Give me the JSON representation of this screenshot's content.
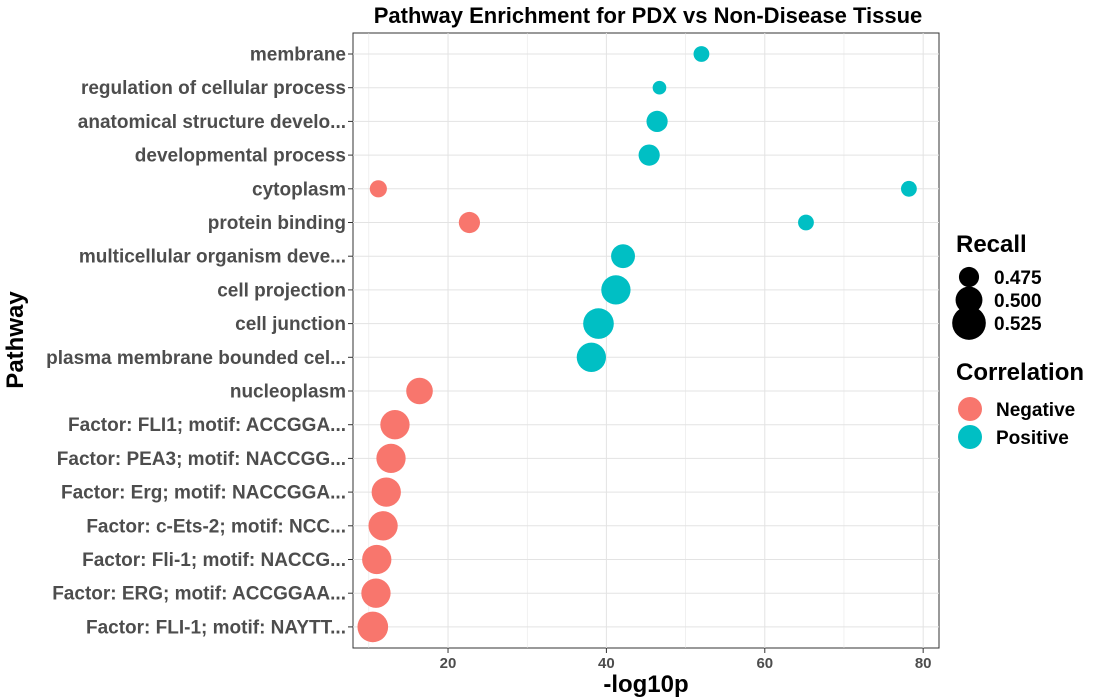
{
  "chart_data": {
    "type": "scatter",
    "title": "Pathway Enrichment for PDX vs Non-Disease Tissue",
    "xlabel": "-log10p",
    "ylabel": "Pathway",
    "xlim": [
      8,
      82
    ],
    "x_ticks": [
      20,
      40,
      60,
      80
    ],
    "grid": true,
    "legend_position": "right",
    "categories": [
      "membrane",
      "regulation of cellular process",
      "anatomical structure develo...",
      "developmental process",
      "cytoplasm",
      "protein binding",
      "multicellular organism deve...",
      "cell projection",
      "cell junction",
      "plasma membrane bounded cel...",
      "nucleoplasm",
      "Factor: FLI1; motif: ACCGGA...",
      "Factor: PEA3; motif: NACCGG...",
      "Factor: Erg; motif: NACCGGA...",
      "Factor: c-Ets-2; motif: NCC...",
      "Factor: Fli-1; motif: NACCG...",
      "Factor: ERG; motif: ACCGGAA...",
      "Factor: FLI-1; motif: NAYTT..."
    ],
    "points": [
      {
        "pathway": "membrane",
        "x": 52,
        "recall": 0.47,
        "correlation": "Positive"
      },
      {
        "pathway": "regulation of cellular process",
        "x": 46.7,
        "recall": 0.462,
        "correlation": "Positive"
      },
      {
        "pathway": "anatomical structure develo...",
        "x": 46.4,
        "recall": 0.49,
        "correlation": "Positive"
      },
      {
        "pathway": "developmental process",
        "x": 45.4,
        "recall": 0.49,
        "correlation": "Positive"
      },
      {
        "pathway": "cytoplasm",
        "x": 11.2,
        "recall": 0.475,
        "correlation": "Negative"
      },
      {
        "pathway": "cytoplasm",
        "x": 78.2,
        "recall": 0.47,
        "correlation": "Positive"
      },
      {
        "pathway": "protein binding",
        "x": 22.7,
        "recall": 0.49,
        "correlation": "Negative"
      },
      {
        "pathway": "protein binding",
        "x": 65.2,
        "recall": 0.47,
        "correlation": "Positive"
      },
      {
        "pathway": "multicellular organism deve...",
        "x": 42.1,
        "recall": 0.5,
        "correlation": "Positive"
      },
      {
        "pathway": "cell projection",
        "x": 41.2,
        "recall": 0.52,
        "correlation": "Positive"
      },
      {
        "pathway": "cell junction",
        "x": 39,
        "recall": 0.525,
        "correlation": "Positive"
      },
      {
        "pathway": "plasma membrane bounded cel...",
        "x": 38.1,
        "recall": 0.52,
        "correlation": "Positive"
      },
      {
        "pathway": "nucleoplasm",
        "x": 16.4,
        "recall": 0.51,
        "correlation": "Negative"
      },
      {
        "pathway": "Factor: FLI1; motif: ACCGGA...",
        "x": 13.3,
        "recall": 0.52,
        "correlation": "Negative"
      },
      {
        "pathway": "Factor: PEA3; motif: NACCGG...",
        "x": 12.8,
        "recall": 0.52,
        "correlation": "Negative"
      },
      {
        "pathway": "Factor: Erg; motif: NACCGGA...",
        "x": 12.2,
        "recall": 0.52,
        "correlation": "Negative"
      },
      {
        "pathway": "Factor: c-Ets-2; motif: NCC...",
        "x": 11.8,
        "recall": 0.52,
        "correlation": "Negative"
      },
      {
        "pathway": "Factor: Fli-1; motif: NACCG...",
        "x": 11,
        "recall": 0.52,
        "correlation": "Negative"
      },
      {
        "pathway": "Factor: ERG; motif: ACCGGAA...",
        "x": 10.9,
        "recall": 0.52,
        "correlation": "Negative"
      },
      {
        "pathway": "Factor: FLI-1; motif: NAYTT...",
        "x": 10.5,
        "recall": 0.525,
        "correlation": "Negative"
      }
    ],
    "legend_recall": {
      "title": "Recall",
      "items": [
        {
          "label": "0.475",
          "value": 0.475
        },
        {
          "label": "0.500",
          "value": 0.5
        },
        {
          "label": "0.525",
          "value": 0.525
        }
      ]
    },
    "legend_correlation": {
      "title": "Correlation",
      "items": [
        {
          "label": "Negative",
          "color": "#F8766D"
        },
        {
          "label": "Positive",
          "color": "#00BFC4"
        }
      ]
    },
    "colors": {
      "Negative": "#F8766D",
      "Positive": "#00BFC4"
    }
  }
}
